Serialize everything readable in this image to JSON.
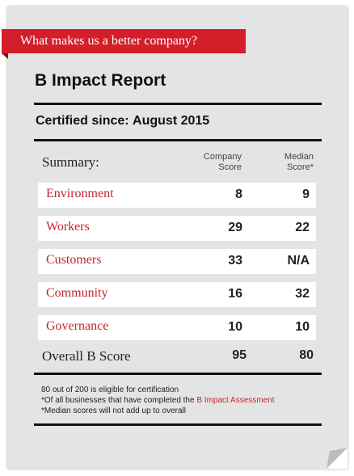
{
  "banner": {
    "text": "What makes us a better company?"
  },
  "report": {
    "title": "B Impact Report",
    "certified_label": "Certified since:",
    "certified_date": "August 2015"
  },
  "table": {
    "summary_label": "Summary:",
    "col_company": [
      "Company",
      "Score"
    ],
    "col_median": [
      "Median",
      "Score*"
    ],
    "rows": [
      {
        "label": "Environment",
        "company": "8",
        "median": "9"
      },
      {
        "label": "Workers",
        "company": "29",
        "median": "22"
      },
      {
        "label": "Customers",
        "company": "33",
        "median": "N/A"
      },
      {
        "label": "Community",
        "company": "16",
        "median": "32"
      },
      {
        "label": "Governance",
        "company": "10",
        "median": "10"
      }
    ],
    "overall": {
      "label": "Overall B Score",
      "company": "95",
      "median": "80"
    }
  },
  "notes": {
    "line1": "80 out of 200 is eligible for certification",
    "line2_prefix": "*Of all businesses that have completed the ",
    "line2_link": "B Impact Assessment",
    "line3": "*Median scores will not add up to overall"
  },
  "colors": {
    "accent": "#d41e2a",
    "label_red": "#c1272d",
    "card_bg": "#e4e4e4"
  }
}
